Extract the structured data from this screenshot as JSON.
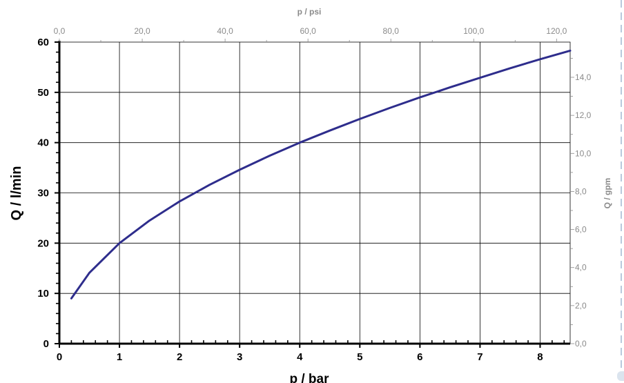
{
  "chart_data": {
    "type": "line",
    "xlabel": "p / bar",
    "ylabel": "Q / l/min",
    "x2label": "p / psi",
    "y2label": "Q / gpm",
    "xlim": [
      0,
      8.5
    ],
    "ylim": [
      0,
      60
    ],
    "x2lim": [
      0,
      123.28
    ],
    "y2lim": [
      0,
      15.85
    ],
    "x_ticks": [
      "0",
      "1",
      "2",
      "3",
      "4",
      "5",
      "6",
      "7",
      "8"
    ],
    "y_ticks": [
      "0",
      "10",
      "20",
      "30",
      "40",
      "50",
      "60"
    ],
    "x2_ticks": [
      "0,0",
      "20,0",
      "40,0",
      "60,0",
      "80,0",
      "100,0",
      "120,0"
    ],
    "y2_ticks": [
      "0,0",
      "2,0",
      "4,0",
      "6,0",
      "8,0",
      "10,0",
      "12,0",
      "14,0"
    ],
    "grid": true,
    "series": [
      {
        "x": [
          0.2,
          0.5,
          1.0,
          1.5,
          2.0,
          2.5,
          3.0,
          3.5,
          4.0,
          4.5,
          5.0,
          5.5,
          6.0,
          6.5,
          7.0,
          7.5,
          8.0,
          8.5
        ],
        "y": [
          9.0,
          14.1,
          20.0,
          24.5,
          28.3,
          31.6,
          34.6,
          37.4,
          40.0,
          42.4,
          44.7,
          46.9,
          49.0,
          51.0,
          52.9,
          54.8,
          56.6,
          58.3
        ]
      }
    ],
    "colors": {
      "curve": "#2e2d8c",
      "grid": "#000000",
      "axis": "#000000",
      "secondary_text": "#8a8a8a"
    }
  }
}
